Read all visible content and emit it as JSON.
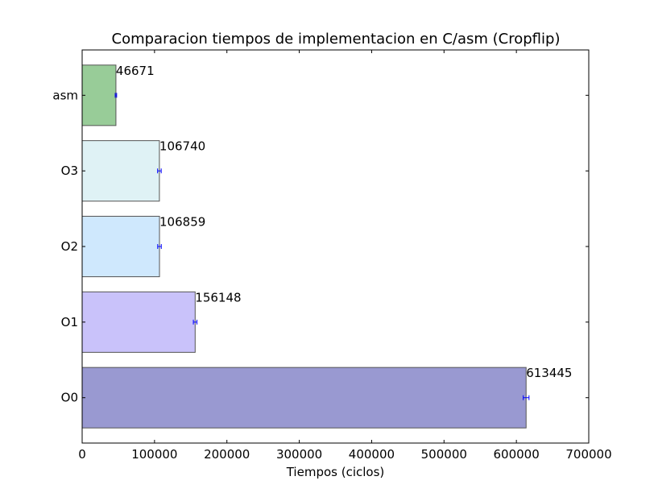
{
  "chart_data": {
    "type": "bar",
    "orientation": "horizontal",
    "title": "Comparacion tiempos de implementacion en C/asm (Cropflip)",
    "xlabel": "Tiempos (ciclos)",
    "ylabel": "",
    "xlim": [
      0,
      700000
    ],
    "xticks": [
      0,
      100000,
      200000,
      300000,
      400000,
      500000,
      600000,
      700000
    ],
    "xtick_labels": [
      "0",
      "100000",
      "200000",
      "300000",
      "400000",
      "500000",
      "600000",
      "700000"
    ],
    "categories": [
      "O0",
      "O1",
      "O2",
      "O3",
      "asm"
    ],
    "values": [
      613445,
      156148,
      106859,
      106740,
      46671
    ],
    "value_labels": [
      "613445",
      "156148",
      "106859",
      "106740",
      "46671"
    ],
    "error": [
      4000,
      2500,
      2500,
      2500,
      1000
    ],
    "colors": [
      "#9999d1",
      "#c9c2fa",
      "#cfe8fd",
      "#dff2f5",
      "#98cc98"
    ],
    "error_color": "#0000ff",
    "grid": false,
    "legend": "none"
  }
}
